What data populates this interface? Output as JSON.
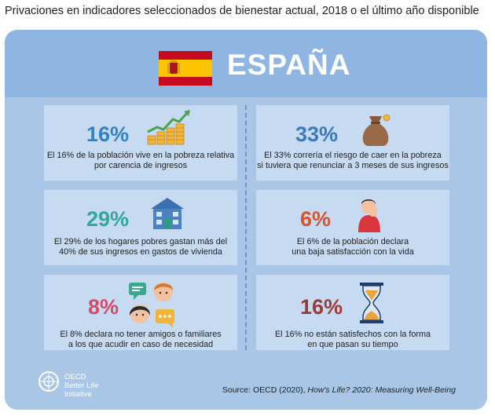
{
  "title": "Privaciones en indicadores seleccionados de bienestar actual, 2018 o el último año disponible",
  "country": "ESPAÑA",
  "colors": {
    "panel": "#a9c6e6",
    "header": "#8fb6e2",
    "card": "#c6daf1",
    "flag_red": "#c60b1e",
    "flag_yellow": "#ffc400"
  },
  "cards": [
    {
      "value": "16%",
      "text": [
        "El 16% de la población vive en la pobreza relativa",
        "por carencia de ingresos"
      ],
      "icon": "growth-coins-icon"
    },
    {
      "value": "33%",
      "text": [
        "El 33% correría el riesgo de caer en la pobreza",
        "si tuviera que renunciar a 3 meses de sus ingresos"
      ],
      "icon": "money-bag-icon"
    },
    {
      "value": "29%",
      "text": [
        "El 29% de los hogares pobres gastan más del",
        "40% de sus ingresos en gastos de vivienda"
      ],
      "icon": "house-icon"
    },
    {
      "value": "6%",
      "text": [
        "El 6% de la población declara",
        "una baja satisfacción con la vida"
      ],
      "icon": "sad-person-icon"
    },
    {
      "value": "8%",
      "text": [
        "El 8% declara no tener amigos o familiares",
        "a los que acudir en caso de necesidad"
      ],
      "icon": "chat-people-icon"
    },
    {
      "value": "16%",
      "text": [
        "El 16% no están satisfechos con la forma",
        "en que pasan su tiempo"
      ],
      "icon": "hourglass-icon"
    }
  ],
  "logo": {
    "line1": "OECD",
    "line2": "Better Life",
    "line3": "Initiative"
  },
  "source": {
    "prefix": "Source: OECD (2020), ",
    "title": "How's Life? 2020: Measuring Well-Being"
  }
}
